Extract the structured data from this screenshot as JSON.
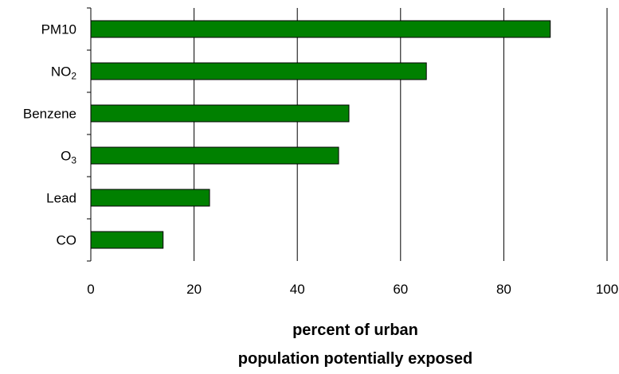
{
  "chart_data": {
    "type": "bar",
    "orientation": "horizontal",
    "categories": [
      {
        "text": "PM10",
        "sub": ""
      },
      {
        "text": "NO",
        "sub": "2"
      },
      {
        "text": "Benzene",
        "sub": ""
      },
      {
        "text": "O",
        "sub": "3"
      },
      {
        "text": "Lead",
        "sub": ""
      },
      {
        "text": "CO",
        "sub": ""
      }
    ],
    "values": [
      89,
      65,
      50,
      48,
      23,
      14
    ],
    "xlim": [
      0,
      100
    ],
    "xticks": [
      0,
      20,
      40,
      60,
      80,
      100
    ],
    "xlabel_lines": [
      "percent of urban",
      "population potentially exposed"
    ],
    "ylabel": "",
    "title": "",
    "grid": "vertical",
    "legend": "none",
    "colors": {
      "bar_fill": "#008000",
      "bar_stroke": "#000000",
      "gridline": "#000000",
      "axis": "#000000"
    }
  }
}
